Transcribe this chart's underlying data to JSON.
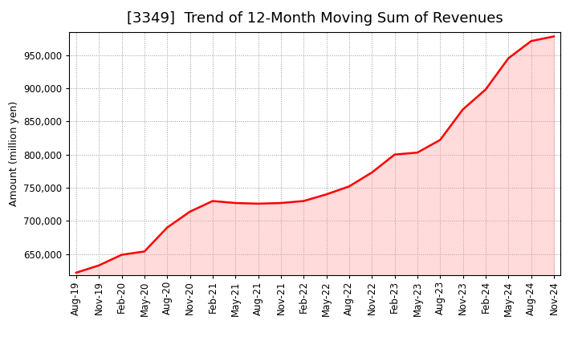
{
  "title": "[3349]  Trend of 12-Month Moving Sum of Revenues",
  "ylabel": "Amount (million yen)",
  "line_color": "#FF0000",
  "fill_color": "#FF9999",
  "fill_alpha": 0.35,
  "background_color": "#FFFFFF",
  "grid_color": "#999999",
  "x_labels": [
    "Aug-19",
    "Nov-19",
    "Feb-20",
    "May-20",
    "Aug-20",
    "Nov-20",
    "Feb-21",
    "May-21",
    "Aug-21",
    "Nov-21",
    "Feb-22",
    "May-22",
    "Aug-22",
    "Nov-22",
    "Feb-23",
    "May-23",
    "Aug-23",
    "Nov-23",
    "Feb-24",
    "May-24",
    "Aug-24",
    "Nov-24"
  ],
  "values": [
    622000,
    633000,
    649000,
    654000,
    690000,
    714000,
    730000,
    727000,
    726000,
    727000,
    730000,
    740000,
    752000,
    773000,
    800000,
    803000,
    822000,
    868000,
    898000,
    945000,
    971000,
    978000
  ],
  "ylim_min": 618000,
  "ylim_max": 985000,
  "yticks": [
    650000,
    700000,
    750000,
    800000,
    850000,
    900000,
    950000
  ],
  "title_fontsize": 13,
  "axis_fontsize": 9,
  "tick_fontsize": 8.5
}
